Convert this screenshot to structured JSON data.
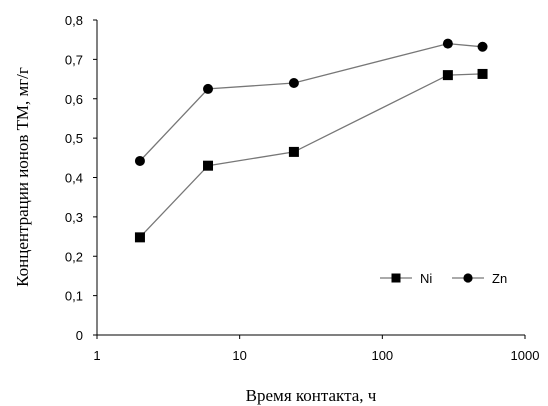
{
  "chart_data": {
    "type": "line",
    "x_scale": "log",
    "xlabel": "Время контакта, ч",
    "ylabel": "Концентрации ионов ТМ, мг/г",
    "xlim": [
      1,
      1000
    ],
    "ylim": [
      0,
      0.8
    ],
    "x_ticks": [
      {
        "value": 1,
        "label": "1"
      },
      {
        "value": 10,
        "label": "10"
      },
      {
        "value": 100,
        "label": "100"
      },
      {
        "value": 1000,
        "label": "1000"
      }
    ],
    "y_ticks": [
      {
        "value": 0,
        "label": "0"
      },
      {
        "value": 0.1,
        "label": "0,1"
      },
      {
        "value": 0.2,
        "label": "0,2"
      },
      {
        "value": 0.3,
        "label": "0,3"
      },
      {
        "value": 0.4,
        "label": "0,4"
      },
      {
        "value": 0.5,
        "label": "0,5"
      },
      {
        "value": 0.6,
        "label": "0,6"
      },
      {
        "value": 0.7,
        "label": "0,7"
      },
      {
        "value": 0.8,
        "label": "0,8"
      }
    ],
    "grid": false,
    "legend_position": "bottom-right",
    "series": [
      {
        "name": "Ni",
        "marker": "square",
        "x": [
          2,
          6,
          24,
          288,
          504
        ],
        "y": [
          0.248,
          0.43,
          0.465,
          0.66,
          0.663
        ]
      },
      {
        "name": "Zn",
        "marker": "circle",
        "x": [
          2,
          6,
          24,
          288,
          504
        ],
        "y": [
          0.442,
          0.625,
          0.64,
          0.74,
          0.732
        ]
      }
    ]
  }
}
